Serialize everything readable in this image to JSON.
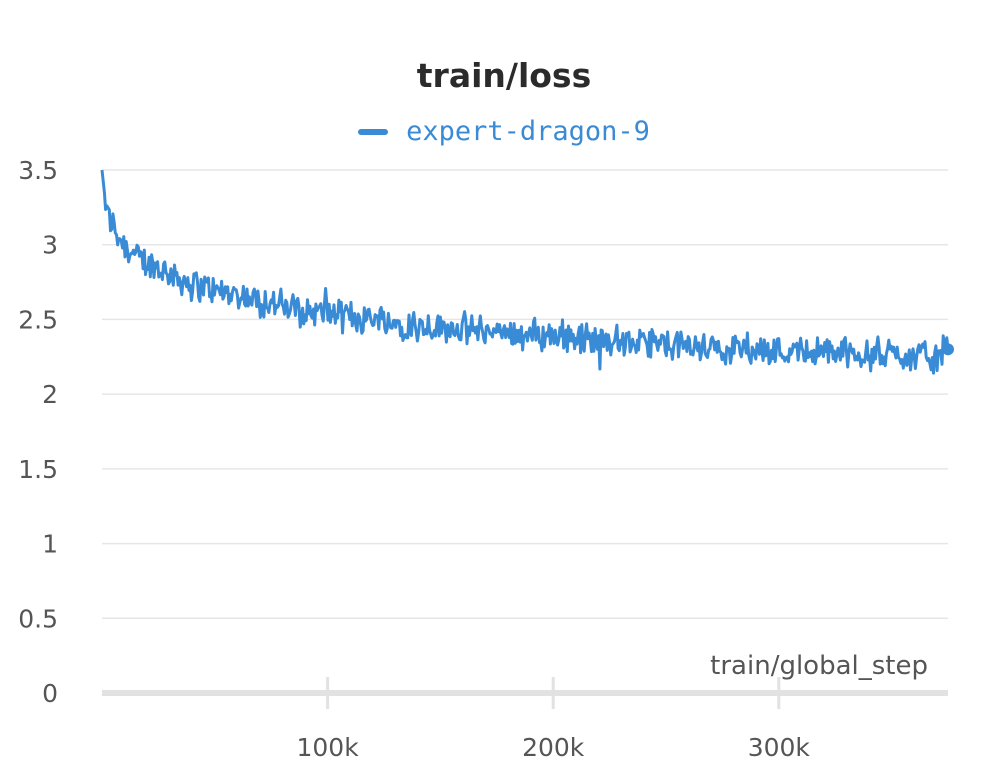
{
  "panel": {
    "title": "train/loss"
  },
  "legend": {
    "position": "top-center",
    "entries": [
      {
        "name": "expert-dragon-9",
        "color": "#3a8bd6"
      }
    ]
  },
  "chart_data": {
    "type": "line",
    "title": "train/loss",
    "xlabel": "train/global_step",
    "ylabel": "",
    "grid": true,
    "xlim": [
      0,
      375000
    ],
    "ylim": [
      0,
      3.5
    ],
    "x_ticks": [
      100000,
      200000,
      300000
    ],
    "x_tick_labels": [
      "100k",
      "200k",
      "300k"
    ],
    "y_ticks": [
      0,
      0.5,
      1,
      1.5,
      2,
      2.5,
      3,
      3.5
    ],
    "y_tick_labels": [
      "0",
      "0.5",
      "1",
      "1.5",
      "2",
      "2.5",
      "3",
      "3.5"
    ],
    "series": [
      {
        "name": "expert-dragon-9",
        "color": "#3a8bd6",
        "x": [
          0,
          2000,
          5000,
          10000,
          15000,
          20000,
          25000,
          30000,
          40000,
          50000,
          60000,
          70000,
          80000,
          90000,
          100000,
          110000,
          120000,
          130000,
          140000,
          150000,
          160000,
          170000,
          180000,
          190000,
          200000,
          210000,
          220000,
          230000,
          240000,
          250000,
          260000,
          270000,
          280000,
          290000,
          300000,
          310000,
          320000,
          330000,
          340000,
          350000,
          360000,
          370000,
          375000
        ],
        "y": [
          3.5,
          3.22,
          3.12,
          3.0,
          2.92,
          2.88,
          2.84,
          2.8,
          2.74,
          2.69,
          2.66,
          2.62,
          2.59,
          2.56,
          2.54,
          2.52,
          2.51,
          2.48,
          2.46,
          2.45,
          2.44,
          2.42,
          2.41,
          2.4,
          2.39,
          2.38,
          2.36,
          2.35,
          2.34,
          2.33,
          2.32,
          2.31,
          2.31,
          2.3,
          2.29,
          2.29,
          2.28,
          2.28,
          2.27,
          2.27,
          2.26,
          2.26,
          2.3
        ],
        "noise_amplitude": 0.09
      }
    ]
  }
}
